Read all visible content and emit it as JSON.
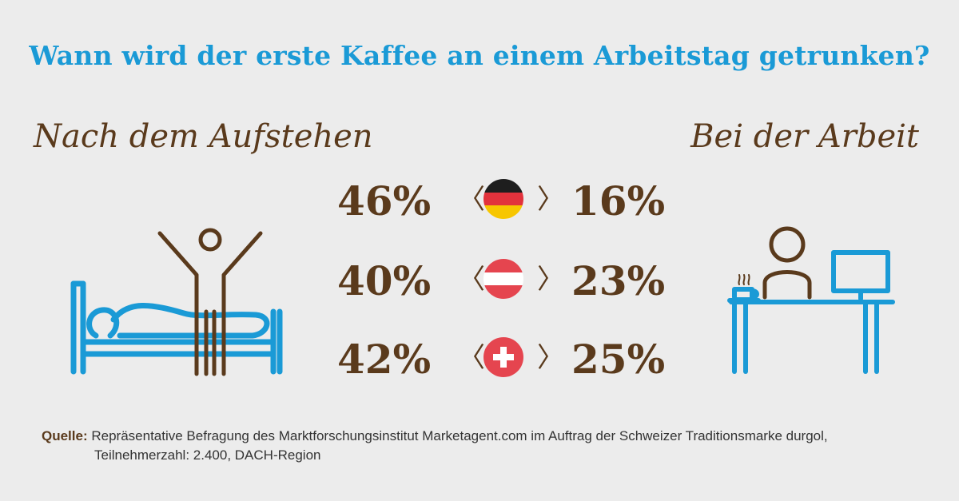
{
  "title": "Wann wird der erste Kaffee an einem Arbeitstag getrunken?",
  "left_heading": "Nach dem Aufstehen",
  "right_heading": "Bei der Arbeit",
  "rows": [
    {
      "country": "Deutschland",
      "flag_icon": "germany-flag-icon",
      "after_waking": "46%",
      "at_work": "16%"
    },
    {
      "country": "Österreich",
      "flag_icon": "austria-flag-icon",
      "after_waking": "40%",
      "at_work": "23%"
    },
    {
      "country": "Schweiz",
      "flag_icon": "switzerland-flag-icon",
      "after_waking": "42%",
      "at_work": "25%"
    }
  ],
  "chevron_left": "〈",
  "chevron_right": "〉",
  "source": {
    "label": "Quelle:",
    "line1": "Repräsentative Befragung des Marktforschungsinstitut Marketagent.com im Auftrag der Schweizer Traditionsmarke durgol,",
    "line2": "Teilnehmerzahl: 2.400, DACH-Region"
  },
  "colors": {
    "background": "#ececec",
    "title_blue": "#1a9ad6",
    "brown": "#5a3a1c",
    "flag_red": "#e5454f"
  },
  "icons": [
    "person-waking-in-bed-icon",
    "person-at-desk-with-coffee-icon"
  ]
}
